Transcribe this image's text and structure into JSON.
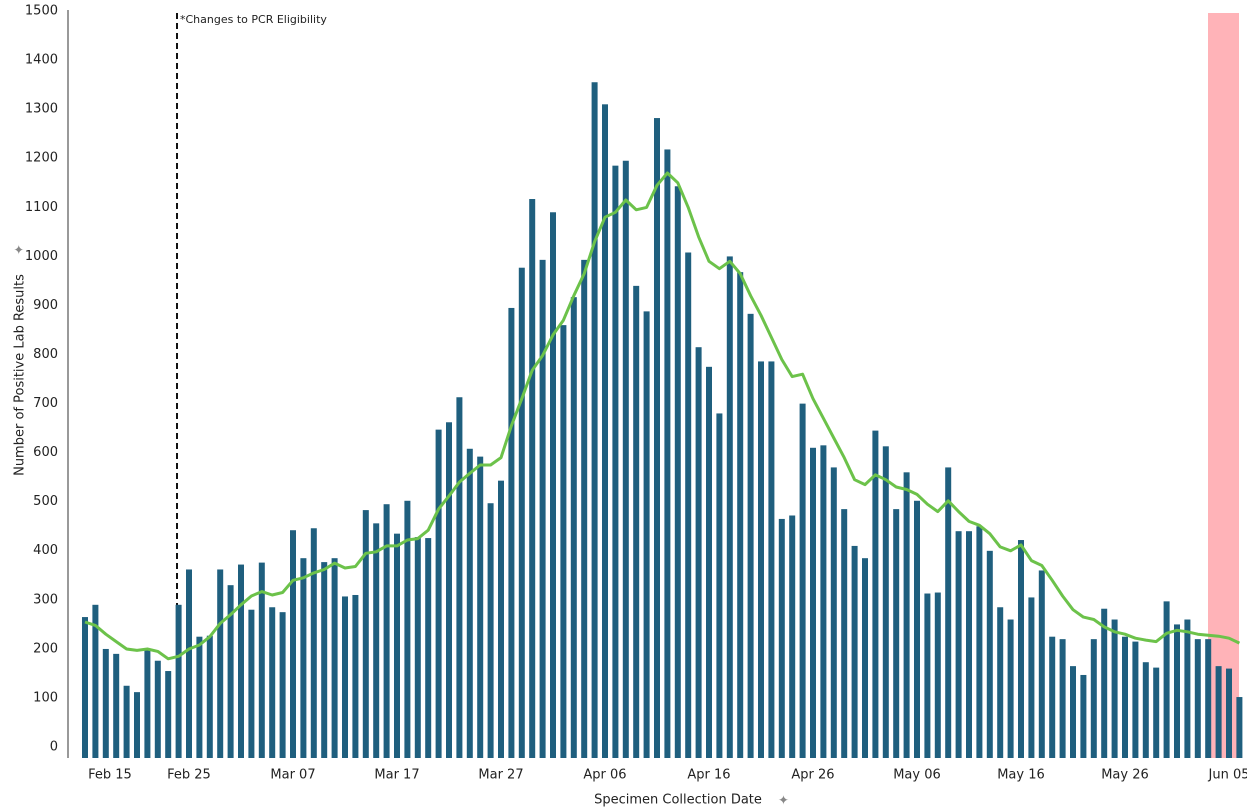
{
  "chart_data": {
    "type": "bar",
    "annotation": "*Changes to PCR Eligibility",
    "x_label": "Specimen Collection Date",
    "y_label": "Number of Positive Lab Results",
    "categories": [
      "Feb 15",
      null,
      null,
      null,
      null,
      null,
      null,
      null,
      null,
      null,
      "Feb 25",
      null,
      null,
      null,
      null,
      null,
      null,
      null,
      null,
      null,
      "Mar 07",
      null,
      null,
      null,
      null,
      null,
      null,
      null,
      null,
      null,
      "Mar 17",
      null,
      null,
      null,
      null,
      null,
      null,
      null,
      null,
      null,
      "Mar 27",
      null,
      null,
      null,
      null,
      null,
      null,
      null,
      null,
      null,
      "Apr 06",
      null,
      null,
      null,
      null,
      null,
      null,
      null,
      null,
      null,
      "Apr 16",
      null,
      null,
      null,
      null,
      null,
      null,
      null,
      null,
      null,
      "Apr 26",
      null,
      null,
      null,
      null,
      null,
      null,
      null,
      null,
      null,
      "May 06",
      null,
      null,
      null,
      null,
      null,
      null,
      null,
      null,
      null,
      "May 16",
      null,
      null,
      null,
      null,
      null,
      null,
      null,
      null,
      null,
      "May 26",
      null,
      null,
      null,
      null,
      null,
      null,
      null,
      null,
      null,
      "Jun 05",
      null
    ],
    "series": [
      {
        "type": "bar",
        "color": "#1f5f7e",
        "values": [
          275,
          300,
          210,
          200,
          135,
          122,
          210,
          186,
          165,
          300,
          372,
          235,
          237,
          372,
          340,
          382,
          290,
          386,
          295,
          285,
          452,
          395,
          456,
          387,
          395,
          317,
          320,
          493,
          466,
          505,
          445,
          512,
          438,
          436,
          657,
          672,
          723,
          618,
          602,
          507,
          553,
          905,
          987,
          1127,
          1003,
          1100,
          870,
          927,
          1003,
          1365,
          1320,
          1195,
          1205,
          950,
          898,
          1292,
          1228,
          1153,
          1018,
          825,
          785,
          690,
          1010,
          978,
          893,
          796,
          796,
          475,
          482,
          710,
          620,
          625,
          580,
          495,
          420,
          395,
          655,
          623,
          495,
          570,
          512,
          323,
          325,
          580,
          450,
          450,
          460,
          410,
          295,
          270,
          432,
          315,
          370,
          235,
          230,
          175,
          157,
          230,
          292,
          270,
          235,
          225,
          183,
          172,
          307,
          260,
          270,
          230,
          230,
          175,
          170,
          112
        ]
      },
      {
        "type": "line",
        "color": "#6cc24a",
        "values": [
          265,
          258,
          240,
          225,
          210,
          207,
          210,
          205,
          190,
          195,
          210,
          218,
          235,
          262,
          280,
          300,
          318,
          327,
          320,
          325,
          350,
          355,
          365,
          372,
          385,
          375,
          378,
          405,
          408,
          420,
          420,
          432,
          435,
          452,
          495,
          522,
          550,
          568,
          585,
          585,
          600,
          665,
          720,
          778,
          808,
          850,
          880,
          930,
          975,
          1040,
          1090,
          1100,
          1125,
          1105,
          1110,
          1155,
          1180,
          1160,
          1110,
          1050,
          1000,
          985,
          1000,
          975,
          930,
          890,
          845,
          800,
          765,
          770,
          720,
          680,
          640,
          600,
          555,
          545,
          565,
          555,
          540,
          535,
          525,
          505,
          490,
          512,
          490,
          470,
          462,
          445,
          418,
          410,
          422,
          390,
          380,
          350,
          318,
          290,
          275,
          270,
          255,
          245,
          240,
          232,
          228,
          225,
          242,
          248,
          245,
          240,
          238,
          236,
          232,
          222
        ]
      }
    ],
    "ylim": [
      0,
      1500
    ],
    "yticks": [
      0,
      100,
      200,
      300,
      400,
      500,
      600,
      700,
      800,
      900,
      1000,
      1100,
      1200,
      1300,
      1400,
      1500
    ]
  }
}
